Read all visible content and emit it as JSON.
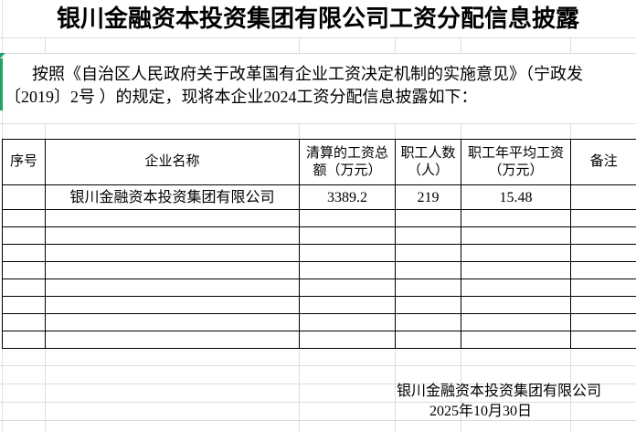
{
  "title": "银川金融资本投资集团有限公司工资分配信息披露",
  "intro": {
    "lines": [
      "按照《自治区人民政府关于改革国有企业工资决定机制的实施意见》（宁政发",
      "〔2019〕2号 ）的规定，现将本企业2024工资分配信息披露如下："
    ]
  },
  "table": {
    "headers": [
      "序号",
      "企业名称",
      "清算的工资总额（万元）",
      "职工人数（人）",
      "职工年平均工资（万元）",
      "备注"
    ],
    "rows": [
      [
        "",
        "银川金融资本投资集团有限公司",
        "3389.2",
        "219",
        "15.48",
        ""
      ],
      [
        "",
        "",
        "",
        "",
        "",
        ""
      ],
      [
        "",
        "",
        "",
        "",
        "",
        ""
      ],
      [
        "",
        "",
        "",
        "",
        "",
        ""
      ],
      [
        "",
        "",
        "",
        "",
        "",
        ""
      ],
      [
        "",
        "",
        "",
        "",
        "",
        ""
      ],
      [
        "",
        "",
        "",
        "",
        "",
        ""
      ],
      [
        "",
        "",
        "",
        "",
        "",
        ""
      ],
      [
        "",
        "",
        "",
        "",
        "",
        ""
      ]
    ]
  },
  "signature": {
    "company": "银川金融资本投资集团有限公司",
    "date": "2025年10月30日"
  },
  "icons": {
    "error_indicator": "green-corner-triangle"
  },
  "colors": {
    "background": "#ffffff",
    "text": "#000000",
    "border": "#000000",
    "gridline": "#dcdcdc",
    "indicator": "#21a366"
  }
}
